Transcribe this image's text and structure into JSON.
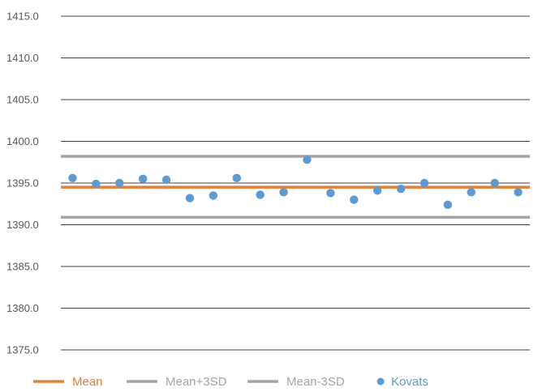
{
  "chart_data": {
    "type": "scatter",
    "title": "",
    "xlabel": "",
    "ylabel": "",
    "ylim": [
      1375,
      1415
    ],
    "yticks": [
      1375.0,
      1380.0,
      1385.0,
      1390.0,
      1395.0,
      1400.0,
      1405.0,
      1410.0,
      1415.0
    ],
    "ytick_labels": [
      "1375.0",
      "1380.0",
      "1385.0",
      "1390.0",
      "1395.0",
      "1400.0",
      "1405.0",
      "1410.0",
      "1415.0"
    ],
    "x": [
      1,
      2,
      3,
      4,
      5,
      6,
      7,
      8,
      9,
      10,
      11,
      12,
      13,
      14,
      15,
      16,
      17,
      18,
      19,
      20
    ],
    "grid": true,
    "legend_position": "bottom",
    "series": [
      {
        "name": "Mean",
        "kind": "line",
        "color": "#ED7D31",
        "values": [
          1394.5,
          1394.5,
          1394.5,
          1394.5,
          1394.5,
          1394.5,
          1394.5,
          1394.5,
          1394.5,
          1394.5,
          1394.5,
          1394.5,
          1394.5,
          1394.5,
          1394.5,
          1394.5,
          1394.5,
          1394.5,
          1394.5,
          1394.5
        ]
      },
      {
        "name": "Mean+3SD",
        "kind": "line",
        "color": "#A5A5A5",
        "values": [
          1398.2,
          1398.2,
          1398.2,
          1398.2,
          1398.2,
          1398.2,
          1398.2,
          1398.2,
          1398.2,
          1398.2,
          1398.2,
          1398.2,
          1398.2,
          1398.2,
          1398.2,
          1398.2,
          1398.2,
          1398.2,
          1398.2,
          1398.2
        ]
      },
      {
        "name": "Mean-3SD",
        "kind": "line",
        "color": "#A5A5A5",
        "values": [
          1390.9,
          1390.9,
          1390.9,
          1390.9,
          1390.9,
          1390.9,
          1390.9,
          1390.9,
          1390.9,
          1390.9,
          1390.9,
          1390.9,
          1390.9,
          1390.9,
          1390.9,
          1390.9,
          1390.9,
          1390.9,
          1390.9,
          1390.9
        ]
      },
      {
        "name": "Kovats",
        "kind": "scatter",
        "color": "#5B9BD5",
        "values": [
          1395.6,
          1394.9,
          1395.0,
          1395.5,
          1395.4,
          1393.2,
          1393.5,
          1395.6,
          1393.6,
          1393.9,
          1397.8,
          1393.8,
          1393.0,
          1394.1,
          1394.3,
          1395.0,
          1392.4,
          1393.9,
          1395.0,
          1393.9
        ]
      }
    ]
  }
}
